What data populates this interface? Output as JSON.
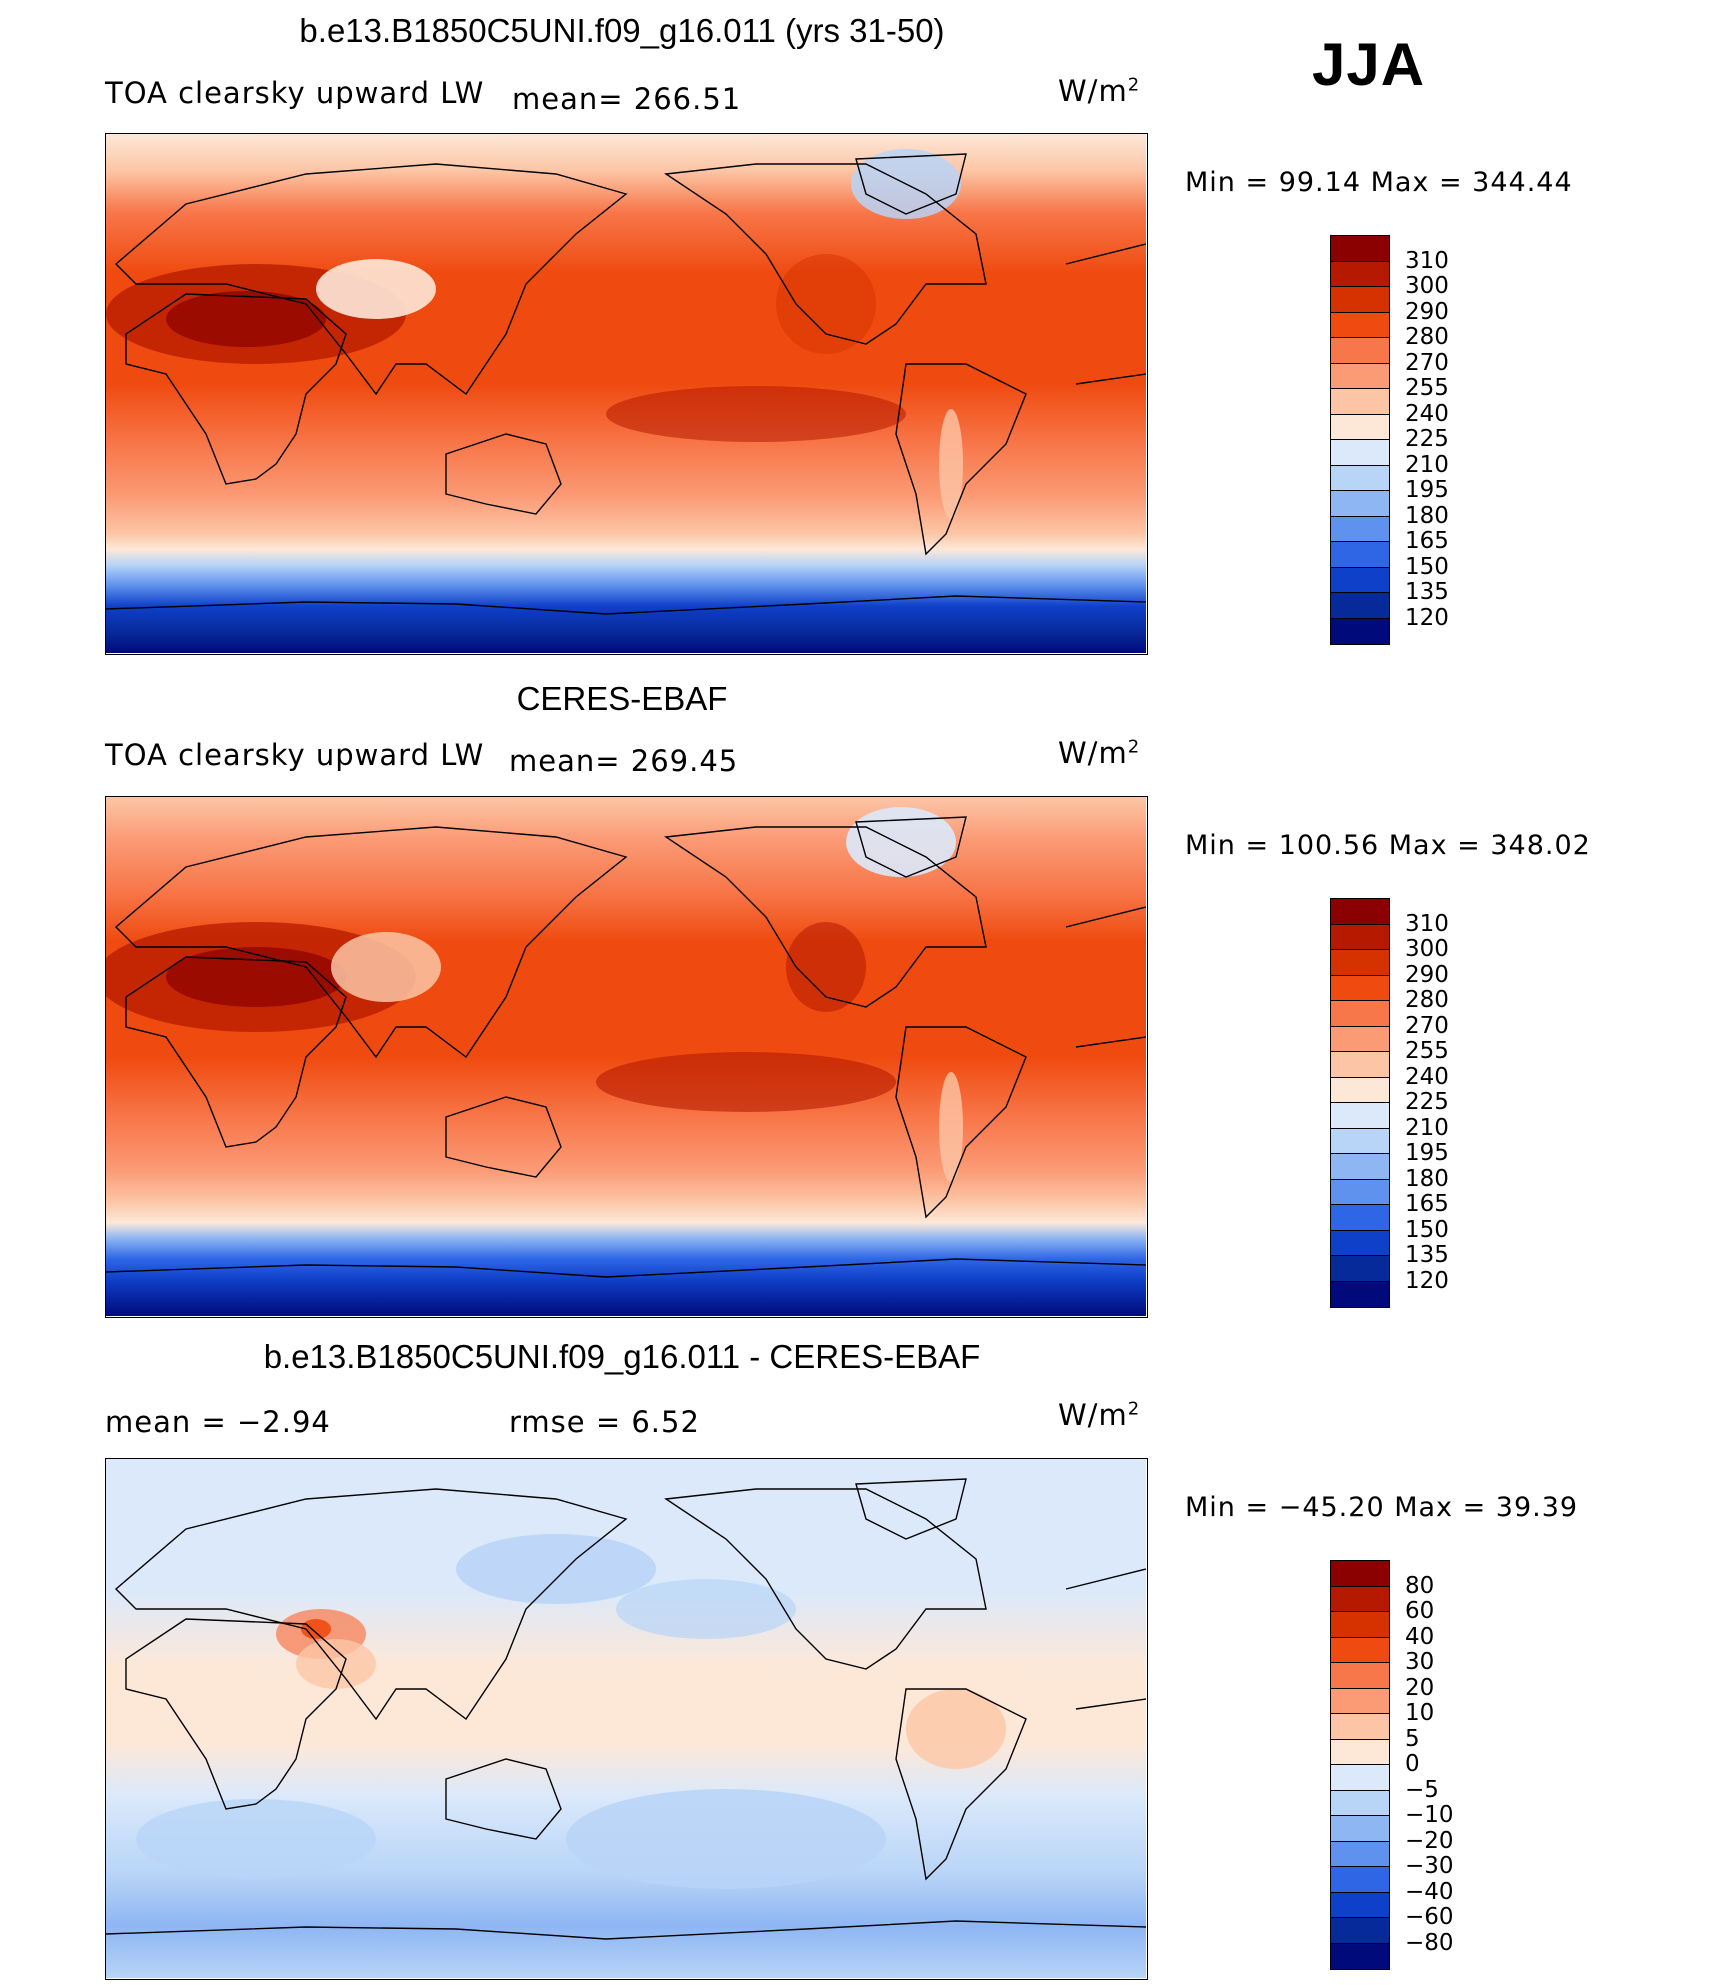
{
  "season": "JJA",
  "unit_text": "W/m",
  "unit_exp": "2",
  "chart_data": [
    {
      "type": "heatmap",
      "title": "b.e13.B1850C5UNI.f09_g16.011 (yrs 31-50)",
      "left_label": "TOA clearsky upward LW",
      "stat_text": "mean= 266.51",
      "min_max_text": "Min =   99.14 Max = 344.44",
      "stats": {
        "mean": 266.51,
        "min": 99.14,
        "max": 344.44
      },
      "colorbar": {
        "levels": [
          "310",
          "300",
          "290",
          "280",
          "270",
          "255",
          "240",
          "225",
          "210",
          "195",
          "180",
          "165",
          "150",
          "135",
          "120"
        ],
        "colors": [
          "#8b0000",
          "#b51a00",
          "#d63200",
          "#ef4a0f",
          "#f8774a",
          "#fb9b76",
          "#fcc6a6",
          "#fde8d8",
          "#dbe9fb",
          "#b8d4f7",
          "#8eb6f3",
          "#5f92ee",
          "#2f66e6",
          "#0f40c9",
          "#072a9b",
          "#000a7a"
        ]
      }
    },
    {
      "type": "heatmap",
      "title": "CERES-EBAF",
      "left_label": "TOA clearsky upward LW",
      "stat_text": "mean= 269.45",
      "min_max_text": "Min = 100.56 Max = 348.02",
      "stats": {
        "mean": 269.45,
        "min": 100.56,
        "max": 348.02
      },
      "colorbar": {
        "levels": [
          "310",
          "300",
          "290",
          "280",
          "270",
          "255",
          "240",
          "225",
          "210",
          "195",
          "180",
          "165",
          "150",
          "135",
          "120"
        ],
        "colors": [
          "#8b0000",
          "#b51a00",
          "#d63200",
          "#ef4a0f",
          "#f8774a",
          "#fb9b76",
          "#fcc6a6",
          "#fde8d8",
          "#dbe9fb",
          "#b8d4f7",
          "#8eb6f3",
          "#5f92ee",
          "#2f66e6",
          "#0f40c9",
          "#072a9b",
          "#000a7a"
        ]
      }
    },
    {
      "type": "heatmap",
      "title": "b.e13.B1850C5UNI.f09_g16.011 - CERES-EBAF",
      "left_label": "mean =   −2.94",
      "stat_text": "rmse =    6.52",
      "min_max_text": "Min = −45.20 Max =   39.39",
      "stats": {
        "mean": -2.94,
        "rmse": 6.52,
        "min": -45.2,
        "max": 39.39
      },
      "colorbar": {
        "levels": [
          "80",
          "60",
          "40",
          "30",
          "20",
          "10",
          "5",
          "0",
          "−5",
          "−10",
          "−20",
          "−30",
          "−40",
          "−60",
          "−80"
        ],
        "colors": [
          "#8b0000",
          "#b51a00",
          "#d63200",
          "#ef4a0f",
          "#f8774a",
          "#fb9b76",
          "#fcc6a6",
          "#fde8d8",
          "#dbe9fb",
          "#b8d4f7",
          "#8eb6f3",
          "#5f92ee",
          "#2f66e6",
          "#0f40c9",
          "#072a9b",
          "#000a7a"
        ]
      }
    }
  ]
}
